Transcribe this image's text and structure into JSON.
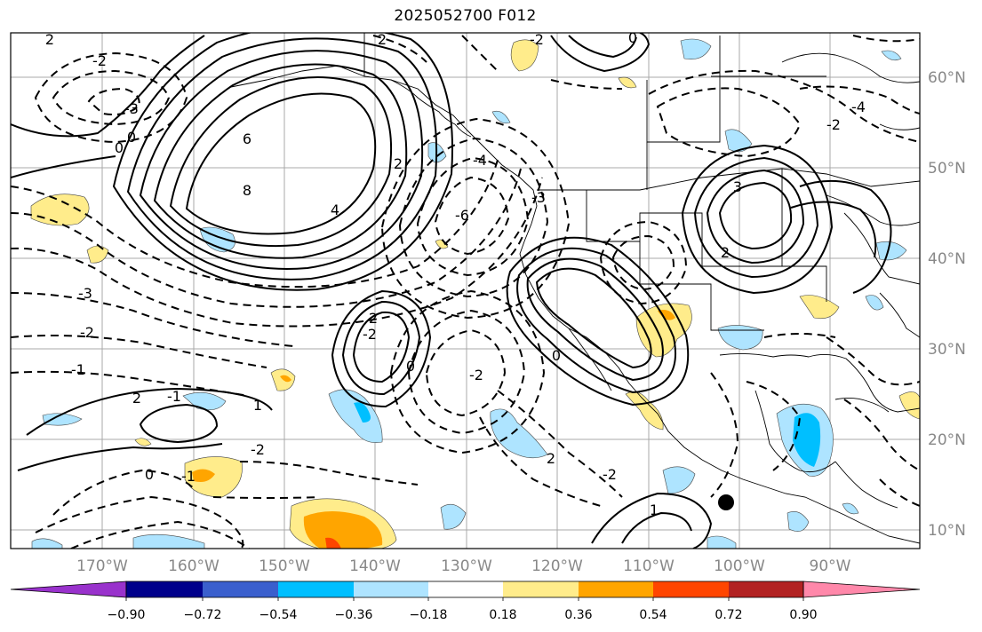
{
  "title": "2025052700 F012",
  "latitude_labels": [
    "60°N",
    "50°N",
    "40°N",
    "30°N",
    "20°N",
    "10°N"
  ],
  "longitude_labels": [
    "170°W",
    "160°W",
    "150°W",
    "140°W",
    "130°W",
    "120°W",
    "110°W",
    "100°W",
    "90°W"
  ],
  "colorbar": {
    "tick_labels": [
      "−0.90",
      "−0.72",
      "−0.54",
      "−0.36",
      "−0.18",
      "0.18",
      "0.36",
      "0.54",
      "0.72",
      "0.90"
    ],
    "colors": [
      "#9932CC",
      "#00008B",
      "#3A5FCD",
      "#00BFFF",
      "#AEE4FF",
      "#FFFFFF",
      "#FFEC8B",
      "#FFA500",
      "#FF4500",
      "#B22222",
      "#FF88AA"
    ]
  },
  "contour_labels": [
    "2",
    "2",
    "-2",
    "-3",
    "0",
    "6",
    "8",
    "4",
    "2",
    "0",
    "-4",
    "-6",
    "-3",
    "-3",
    "3",
    "0",
    "2",
    "-2",
    "2",
    "-1",
    "-2",
    "-1",
    "2",
    "1",
    "0",
    "-1",
    "-2",
    "0",
    "-2",
    "2",
    "-2",
    "-4",
    "-2",
    "-2",
    "0",
    "1"
  ],
  "shading_colors": {
    "light_yellow": "#FFEC8B",
    "orange": "#FFA500",
    "red": "#FF4500",
    "light_blue": "#AEE4FF",
    "blue": "#00BFFF"
  }
}
